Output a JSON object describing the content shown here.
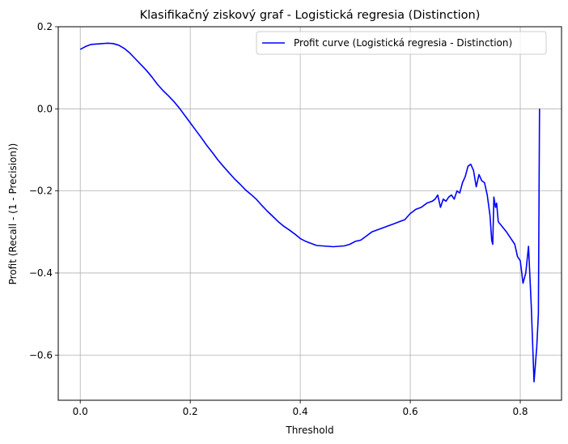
{
  "chart_data": {
    "type": "line",
    "title": "Klasifikačný ziskový graf - Logistická regresia (Distinction)",
    "xlabel": "Threshold",
    "ylabel": "Profit (Recall - (1 - Precision))",
    "xlim": [
      -0.04,
      0.875
    ],
    "ylim": [
      -0.71,
      0.2
    ],
    "xticks": [
      0.0,
      0.2,
      0.4,
      0.6,
      0.8
    ],
    "xtick_labels": [
      "0.0",
      "0.2",
      "0.4",
      "0.6",
      "0.8"
    ],
    "yticks": [
      0.2,
      0.0,
      -0.2,
      -0.4,
      -0.6
    ],
    "ytick_labels": [
      "0.2",
      "0.0",
      "−0.2",
      "−0.4",
      "−0.6"
    ],
    "grid": true,
    "legend_position": "top-right",
    "series": [
      {
        "name": "Profit curve (Logistická regresia - Distinction)",
        "color": "#0000ff",
        "x": [
          0.0,
          0.01,
          0.02,
          0.03,
          0.04,
          0.05,
          0.06,
          0.07,
          0.08,
          0.09,
          0.1,
          0.11,
          0.12,
          0.13,
          0.14,
          0.15,
          0.16,
          0.17,
          0.18,
          0.19,
          0.2,
          0.21,
          0.22,
          0.23,
          0.24,
          0.25,
          0.26,
          0.27,
          0.28,
          0.29,
          0.3,
          0.31,
          0.32,
          0.33,
          0.34,
          0.35,
          0.36,
          0.37,
          0.38,
          0.39,
          0.4,
          0.41,
          0.42,
          0.43,
          0.44,
          0.45,
          0.46,
          0.47,
          0.48,
          0.49,
          0.5,
          0.51,
          0.52,
          0.53,
          0.54,
          0.55,
          0.56,
          0.57,
          0.58,
          0.59,
          0.6,
          0.61,
          0.62,
          0.63,
          0.64,
          0.645,
          0.65,
          0.655,
          0.66,
          0.665,
          0.67,
          0.675,
          0.68,
          0.685,
          0.69,
          0.695,
          0.7,
          0.705,
          0.71,
          0.715,
          0.72,
          0.725,
          0.73,
          0.735,
          0.74,
          0.745,
          0.748,
          0.75,
          0.752,
          0.755,
          0.757,
          0.76,
          0.775,
          0.79,
          0.795,
          0.8,
          0.805,
          0.81,
          0.815,
          0.82,
          0.825,
          0.83,
          0.833,
          0.835
        ],
        "y": [
          0.145,
          0.152,
          0.157,
          0.158,
          0.159,
          0.16,
          0.159,
          0.155,
          0.147,
          0.136,
          0.122,
          0.108,
          0.094,
          0.078,
          0.06,
          0.045,
          0.032,
          0.018,
          0.002,
          -0.016,
          -0.034,
          -0.052,
          -0.07,
          -0.089,
          -0.106,
          -0.124,
          -0.14,
          -0.155,
          -0.17,
          -0.183,
          -0.197,
          -0.208,
          -0.22,
          -0.235,
          -0.249,
          -0.262,
          -0.275,
          -0.286,
          -0.295,
          -0.305,
          -0.316,
          -0.323,
          -0.328,
          -0.333,
          -0.334,
          -0.335,
          -0.336,
          -0.335,
          -0.334,
          -0.33,
          -0.323,
          -0.32,
          -0.31,
          -0.3,
          -0.295,
          -0.29,
          -0.285,
          -0.28,
          -0.275,
          -0.27,
          -0.255,
          -0.245,
          -0.24,
          -0.23,
          -0.225,
          -0.22,
          -0.21,
          -0.24,
          -0.22,
          -0.225,
          -0.215,
          -0.21,
          -0.22,
          -0.2,
          -0.205,
          -0.18,
          -0.165,
          -0.14,
          -0.135,
          -0.15,
          -0.19,
          -0.16,
          -0.175,
          -0.18,
          -0.21,
          -0.26,
          -0.32,
          -0.33,
          -0.215,
          -0.24,
          -0.23,
          -0.275,
          -0.3,
          -0.33,
          -0.36,
          -0.37,
          -0.425,
          -0.4,
          -0.335,
          -0.48,
          -0.665,
          -0.58,
          -0.5,
          0.0
        ]
      }
    ]
  }
}
